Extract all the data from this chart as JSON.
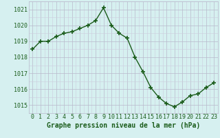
{
  "x": [
    0,
    1,
    2,
    3,
    4,
    5,
    6,
    7,
    8,
    9,
    10,
    11,
    12,
    13,
    14,
    15,
    16,
    17,
    18,
    19,
    20,
    21,
    22,
    23
  ],
  "y": [
    1018.5,
    1019.0,
    1019.0,
    1019.3,
    1019.5,
    1019.6,
    1019.8,
    1020.0,
    1020.3,
    1021.1,
    1020.0,
    1019.5,
    1019.2,
    1018.0,
    1017.1,
    1016.1,
    1015.5,
    1015.1,
    1014.9,
    1015.2,
    1015.6,
    1015.7,
    1016.1,
    1016.4
  ],
  "line_color": "#1a5c1a",
  "marker": "+",
  "marker_size": 4,
  "marker_lw": 1.2,
  "bg_color": "#d6f0f0",
  "grid_color_major": "#b8b8cc",
  "grid_color_minor": "#ccccdd",
  "xlabel": "Graphe pression niveau de la mer (hPa)",
  "xlabel_color": "#1a5c1a",
  "xlabel_fontsize": 7,
  "tick_label_color": "#1a5c1a",
  "tick_fontsize": 6,
  "ylim": [
    1014.5,
    1021.5
  ],
  "yticks": [
    1015,
    1016,
    1017,
    1018,
    1019,
    1020,
    1021
  ],
  "xticks": [
    0,
    1,
    2,
    3,
    4,
    5,
    6,
    7,
    8,
    9,
    10,
    11,
    12,
    13,
    14,
    15,
    16,
    17,
    18,
    19,
    20,
    21,
    22,
    23
  ]
}
